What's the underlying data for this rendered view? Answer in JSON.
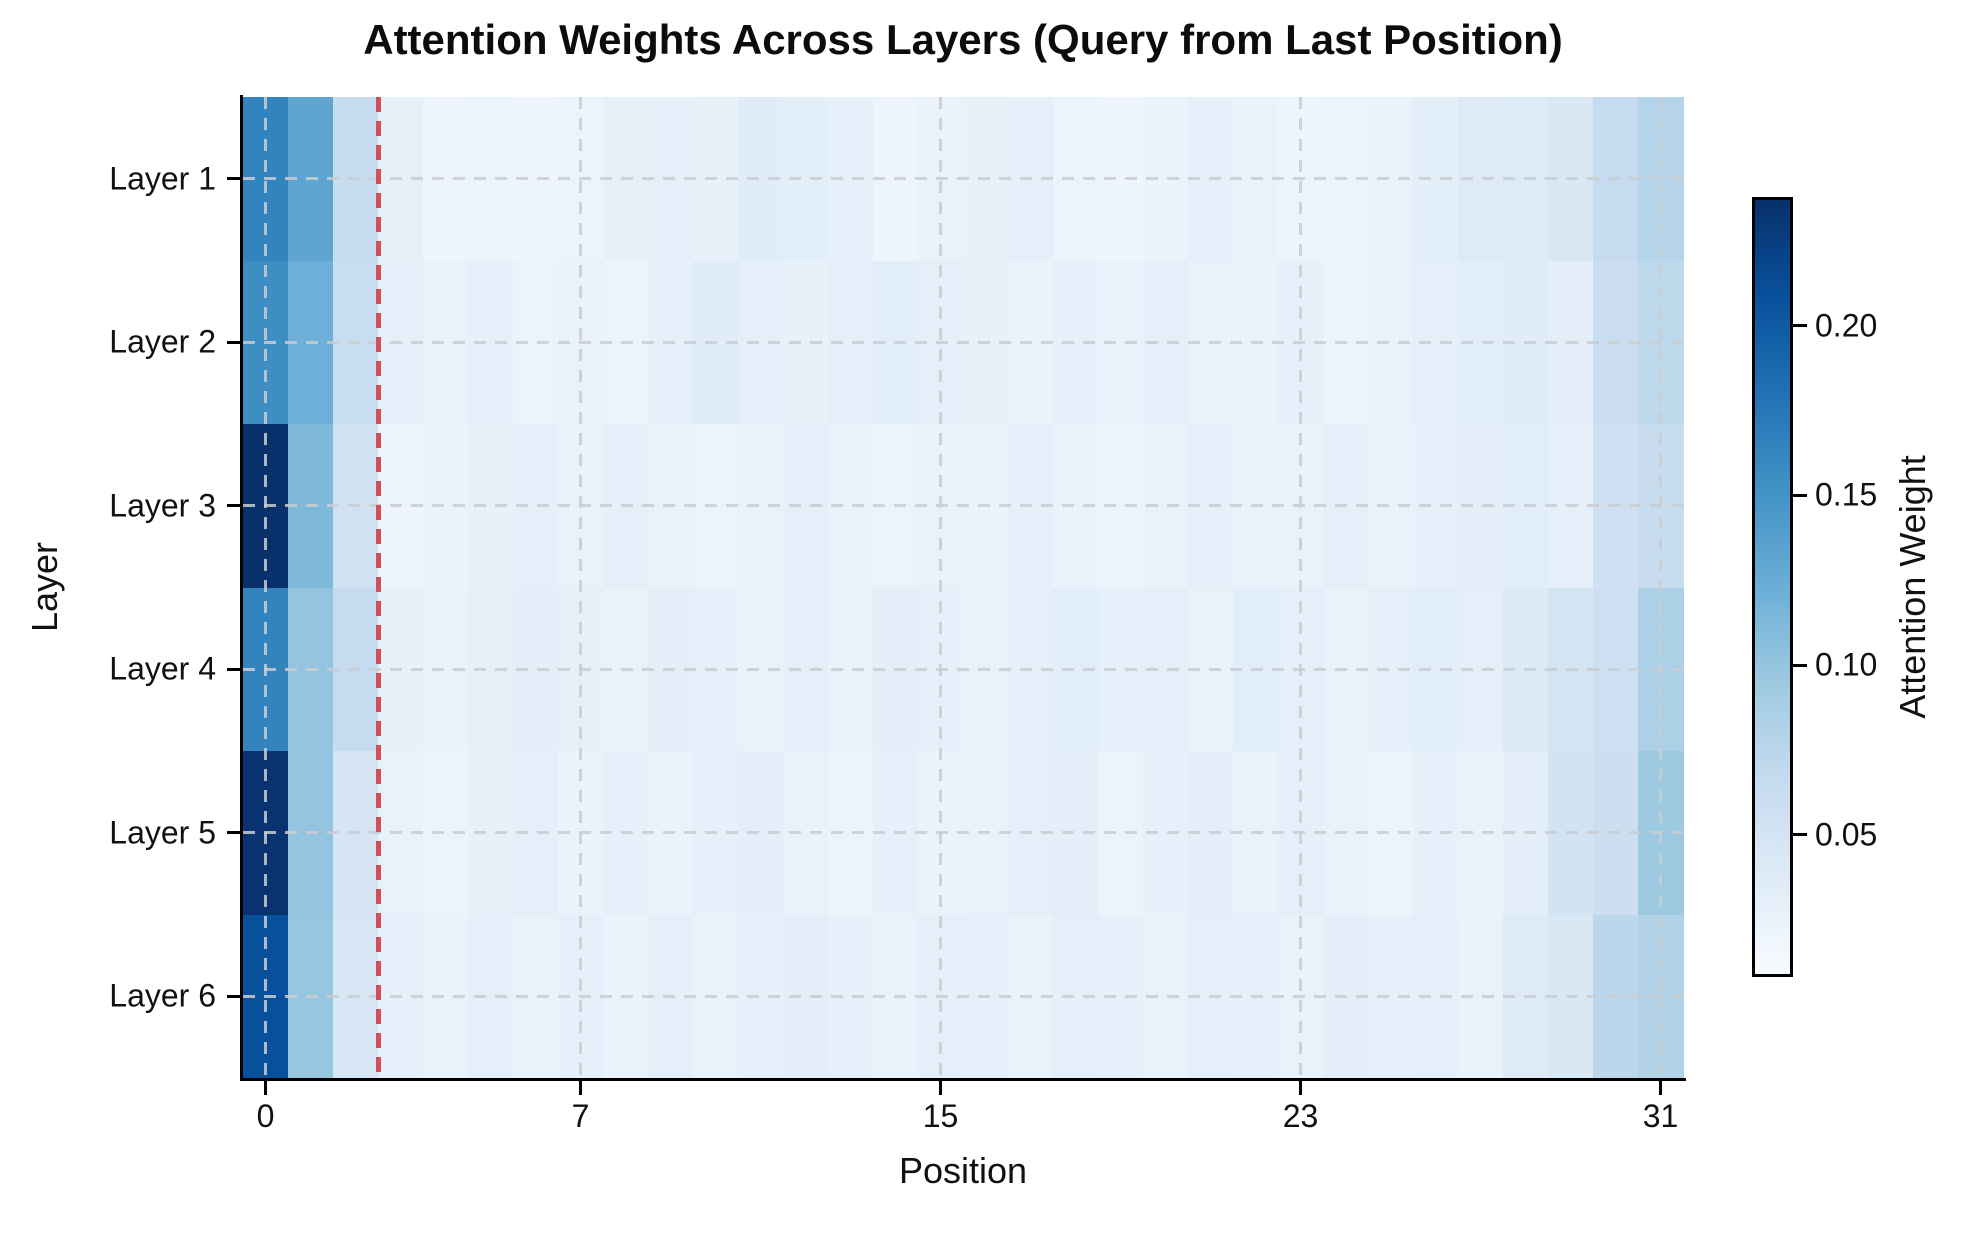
{
  "title": "Attention Weights Across Layers (Query from Last Position)",
  "axes": {
    "xlabel": "Position",
    "ylabel": "Layer",
    "x_tick_labels": [
      "0",
      "7",
      "15",
      "23",
      "31"
    ],
    "y_tick_labels": [
      "Layer 1",
      "Layer 2",
      "Layer 3",
      "Layer 4",
      "Layer 5",
      "Layer 6"
    ]
  },
  "colorbar": {
    "label": "Attention Weight",
    "tick_values": [
      0.05,
      0.1,
      0.15,
      0.2
    ],
    "tick_labels": [
      "0.05",
      "0.10",
      "0.15",
      "0.20"
    ]
  },
  "colors": {
    "vline_red": "#d25055",
    "grid_gray": "#c9cdd1",
    "spine_black": "#000000",
    "colormap_name": "Blues",
    "colormap_stops": [
      "#f7fbff",
      "#deebf7",
      "#c6dbef",
      "#9ecae1",
      "#6baed6",
      "#4292c6",
      "#2171b5",
      "#08519c",
      "#08306b"
    ]
  },
  "chart_data": {
    "type": "heatmap",
    "title": "Attention Weights Across Layers (Query from Last Position)",
    "xlabel": "Position",
    "ylabel": "Layer",
    "n_positions": 32,
    "x_ticks": [
      0,
      7,
      15,
      23,
      31
    ],
    "y_categories": [
      "Layer 1",
      "Layer 2",
      "Layer 3",
      "Layer 4",
      "Layer 5",
      "Layer 6"
    ],
    "colormap": "Blues",
    "vmin": 0.008,
    "vmax": 0.238,
    "grid": {
      "on": true,
      "style": "dashed",
      "color": "#c9cdd1"
    },
    "vline": {
      "position": 2.5,
      "style": "dashed",
      "color": "#d25055"
    },
    "legend_position": "right-colorbar",
    "colorbar_label": "Attention Weight",
    "colorbar_ticks": [
      0.05,
      0.1,
      0.15,
      0.2
    ],
    "series": [
      {
        "name": "Layer 1",
        "values": [
          0.165,
          0.132,
          0.064,
          0.028,
          0.02,
          0.022,
          0.018,
          0.021,
          0.028,
          0.03,
          0.026,
          0.035,
          0.032,
          0.027,
          0.02,
          0.024,
          0.026,
          0.029,
          0.022,
          0.018,
          0.023,
          0.027,
          0.025,
          0.019,
          0.021,
          0.024,
          0.032,
          0.037,
          0.038,
          0.042,
          0.065,
          0.078
        ]
      },
      {
        "name": "Layer 2",
        "values": [
          0.155,
          0.122,
          0.062,
          0.03,
          0.024,
          0.027,
          0.022,
          0.024,
          0.021,
          0.027,
          0.034,
          0.03,
          0.026,
          0.029,
          0.033,
          0.03,
          0.026,
          0.023,
          0.027,
          0.025,
          0.029,
          0.025,
          0.023,
          0.027,
          0.021,
          0.025,
          0.029,
          0.033,
          0.035,
          0.031,
          0.06,
          0.071
        ]
      },
      {
        "name": "Layer 3",
        "values": [
          0.238,
          0.112,
          0.054,
          0.018,
          0.023,
          0.026,
          0.029,
          0.025,
          0.029,
          0.025,
          0.021,
          0.025,
          0.029,
          0.025,
          0.021,
          0.025,
          0.023,
          0.027,
          0.023,
          0.021,
          0.025,
          0.027,
          0.023,
          0.025,
          0.029,
          0.025,
          0.027,
          0.031,
          0.033,
          0.029,
          0.056,
          0.063
        ]
      },
      {
        "name": "Layer 4",
        "values": [
          0.165,
          0.1,
          0.066,
          0.026,
          0.024,
          0.028,
          0.031,
          0.028,
          0.025,
          0.031,
          0.027,
          0.025,
          0.029,
          0.025,
          0.031,
          0.027,
          0.025,
          0.029,
          0.033,
          0.027,
          0.029,
          0.025,
          0.033,
          0.029,
          0.025,
          0.029,
          0.033,
          0.029,
          0.039,
          0.05,
          0.057,
          0.084
        ]
      },
      {
        "name": "Layer 5",
        "values": [
          0.235,
          0.1,
          0.048,
          0.025,
          0.021,
          0.026,
          0.029,
          0.023,
          0.027,
          0.023,
          0.027,
          0.031,
          0.025,
          0.021,
          0.027,
          0.023,
          0.025,
          0.029,
          0.031,
          0.021,
          0.027,
          0.031,
          0.025,
          0.029,
          0.025,
          0.021,
          0.027,
          0.025,
          0.031,
          0.051,
          0.059,
          0.094
        ]
      },
      {
        "name": "Layer 6",
        "values": [
          0.21,
          0.098,
          0.046,
          0.027,
          0.025,
          0.029,
          0.025,
          0.027,
          0.023,
          0.029,
          0.025,
          0.027,
          0.031,
          0.027,
          0.025,
          0.029,
          0.027,
          0.025,
          0.029,
          0.027,
          0.025,
          0.029,
          0.027,
          0.025,
          0.031,
          0.027,
          0.029,
          0.025,
          0.037,
          0.043,
          0.073,
          0.08
        ]
      }
    ]
  }
}
